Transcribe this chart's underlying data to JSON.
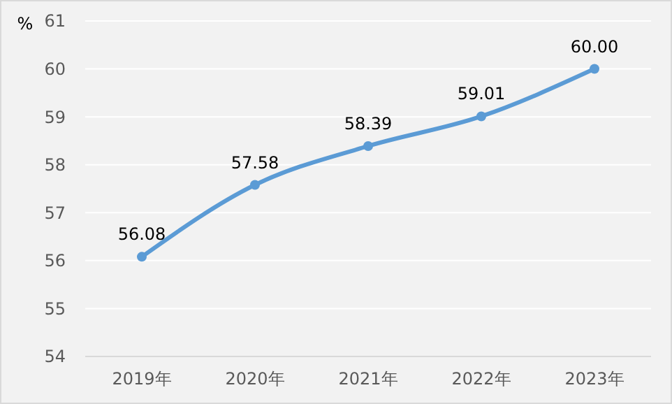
{
  "chart_data": {
    "type": "line",
    "ylabel": "%",
    "categories": [
      "2019年",
      "2020年",
      "2021年",
      "2022年",
      "2023年"
    ],
    "series": [
      {
        "color": "#5b9bd5",
        "values": [
          56.08,
          57.58,
          58.39,
          59.01,
          60.0
        ],
        "value_labels": [
          "56.08",
          "57.58",
          "58.39",
          "59.01",
          "60.00"
        ]
      }
    ],
    "ylim": [
      54,
      61
    ],
    "yticks": [
      54,
      55,
      56,
      57,
      58,
      59,
      60,
      61
    ],
    "grid": "y",
    "marker": "circle",
    "line_style": "solid"
  }
}
